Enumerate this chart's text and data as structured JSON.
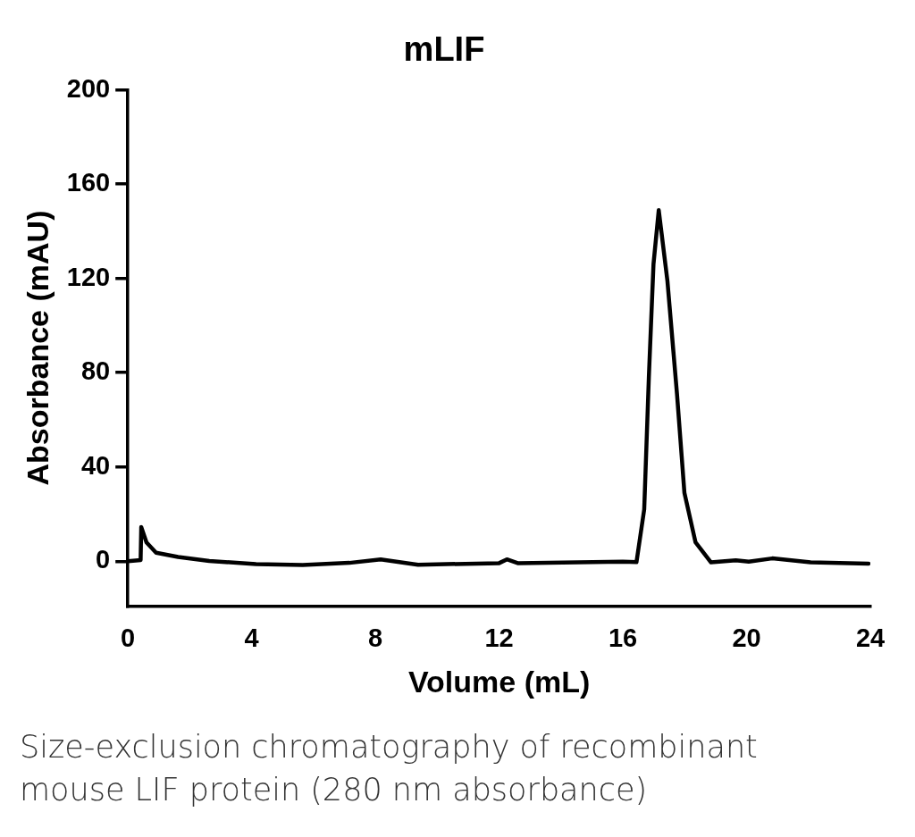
{
  "chart_data": {
    "type": "line",
    "title": "mLIF",
    "xlabel": "Volume (mL)",
    "ylabel": "Absorbance (mAU)",
    "annotations": [
      "Size-exclusion chromatography of recombinant mouse LIF   protein  (280 nm absorbance)"
    ],
    "xlim": [
      0,
      24
    ],
    "xticks": [
      0,
      4,
      8,
      12,
      16,
      20,
      24
    ],
    "ylim": [
      -19,
      200
    ],
    "yticks": [
      0,
      40,
      80,
      120,
      160,
      200
    ],
    "grid": false,
    "legend": false,
    "marker": "none",
    "line_style": "solid",
    "series": [
      {
        "color": "#000000",
        "x": [
          0,
          0.41,
          0.43,
          0.6,
          0.91,
          1.62,
          2.63,
          4.14,
          5.65,
          7.16,
          8.17,
          9.38,
          12.0,
          12.25,
          12.6,
          16.0,
          16.44,
          16.69,
          16.84,
          16.99,
          17.16,
          17.44,
          17.75,
          17.99,
          18.35,
          18.85,
          19.65,
          20.07,
          20.83,
          22.07,
          23.94
        ],
        "values": [
          0,
          0.5,
          14.5,
          8,
          3.6,
          1.8,
          0.1,
          -1.2,
          -1.6,
          -0.7,
          0.8,
          -1.5,
          -0.8,
          0.8,
          -0.8,
          -0.2,
          -0.4,
          22,
          78,
          126,
          149,
          119,
          71,
          29,
          8,
          -0.5,
          0.4,
          -0.2,
          1.2,
          -0.5,
          -1
        ]
      }
    ]
  }
}
